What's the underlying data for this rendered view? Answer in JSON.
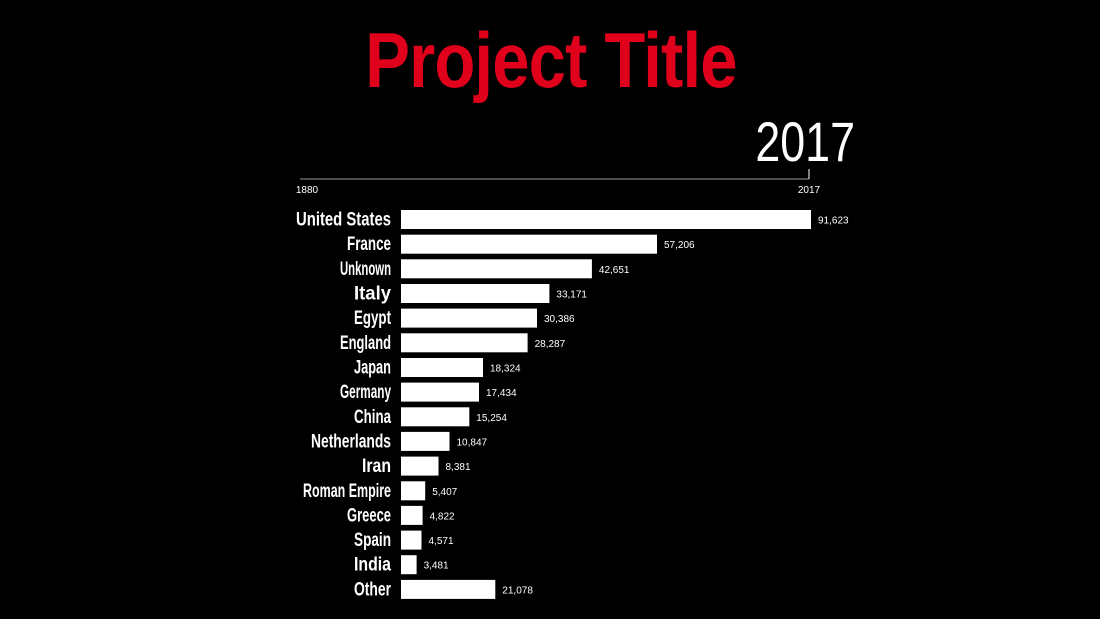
{
  "title": "Project Title",
  "year": "2017",
  "colors": {
    "background": "#000000",
    "title": "#e0001b",
    "bars": "#ffffff",
    "text": "#ffffff",
    "timeline": "#9a9a9a"
  },
  "timeline": {
    "start_label": "1880",
    "end_label": "2017",
    "start": 1880,
    "end": 2017,
    "current": 2017
  },
  "chart_data": {
    "type": "bar",
    "orientation": "horizontal",
    "categories": [
      "United States",
      "France",
      "Unknown",
      "Italy",
      "Egypt",
      "England",
      "Japan",
      "Germany",
      "China",
      "Netherlands",
      "Iran",
      "Roman Empire",
      "Greece",
      "Spain",
      "India",
      "Other"
    ],
    "values": [
      91623,
      57206,
      42651,
      33171,
      30386,
      28287,
      18324,
      17434,
      15254,
      10847,
      8381,
      5407,
      4822,
      4571,
      3481,
      21078
    ],
    "value_labels": [
      "91,623",
      "57,206",
      "42,651",
      "33,171",
      "30,386",
      "28,287",
      "18,324",
      "17,434",
      "15,254",
      "10,847",
      "8,381",
      "5,407",
      "4,822",
      "4,571",
      "3,481",
      "21,078"
    ],
    "xlim": [
      0,
      91623
    ],
    "grid": false,
    "title": "Project Title"
  }
}
